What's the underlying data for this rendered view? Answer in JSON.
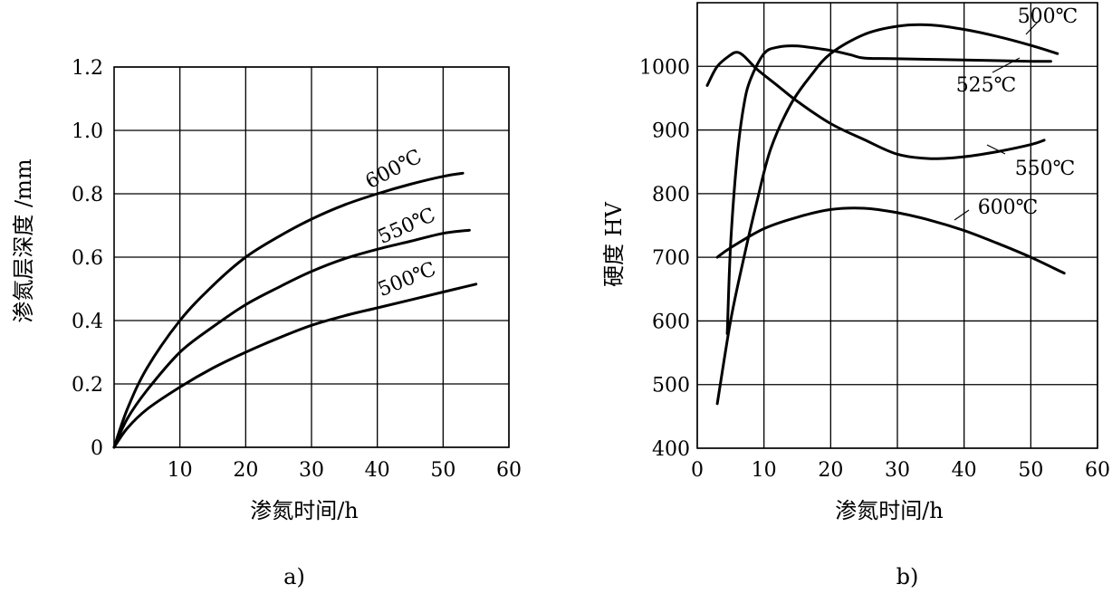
{
  "chart_data": [
    {
      "type": "line",
      "panel_label": "a)",
      "xlabel": "渗氮时间/h",
      "ylabel": "渗氮层深度 /mm",
      "xlim": [
        0,
        60
      ],
      "ylim": [
        0,
        1.2
      ],
      "x_ticks": [
        "10",
        "20",
        "30",
        "40",
        "50",
        "60"
      ],
      "y_ticks": [
        "0",
        "0.2",
        "0.4",
        "0.6",
        "0.8",
        "1.0",
        "1.2"
      ],
      "grid": true,
      "series": [
        {
          "name": "600℃",
          "x": [
            0,
            2,
            5,
            10,
            15,
            20,
            25,
            30,
            35,
            40,
            45,
            50,
            53
          ],
          "y": [
            0,
            0.12,
            0.25,
            0.4,
            0.51,
            0.6,
            0.665,
            0.72,
            0.765,
            0.8,
            0.83,
            0.855,
            0.865
          ]
        },
        {
          "name": "550℃",
          "x": [
            0,
            2,
            5,
            10,
            15,
            20,
            25,
            30,
            35,
            40,
            45,
            50,
            54
          ],
          "y": [
            0,
            0.09,
            0.18,
            0.3,
            0.38,
            0.45,
            0.505,
            0.555,
            0.595,
            0.625,
            0.65,
            0.675,
            0.685
          ]
        },
        {
          "name": "500℃",
          "x": [
            0,
            2,
            5,
            10,
            15,
            20,
            25,
            30,
            35,
            40,
            45,
            50,
            55
          ],
          "y": [
            0,
            0.06,
            0.12,
            0.19,
            0.25,
            0.3,
            0.345,
            0.385,
            0.415,
            0.44,
            0.465,
            0.49,
            0.515
          ]
        }
      ]
    },
    {
      "type": "line",
      "panel_label": "b)",
      "xlabel": "渗氮时间/h",
      "ylabel": "硬度  HV",
      "xlim": [
        0,
        60
      ],
      "ylim": [
        400,
        1100
      ],
      "x_ticks": [
        "0",
        "10",
        "20",
        "30",
        "40",
        "50",
        "60"
      ],
      "y_ticks": [
        "400",
        "500",
        "600",
        "700",
        "800",
        "900",
        "1000"
      ],
      "grid": true,
      "series": [
        {
          "name": "500℃",
          "x": [
            3,
            5,
            7,
            9,
            11,
            14,
            17,
            20,
            25,
            30,
            35,
            40,
            45,
            50,
            54
          ],
          "y": [
            470,
            600,
            700,
            790,
            870,
            940,
            985,
            1020,
            1050,
            1063,
            1065,
            1058,
            1047,
            1033,
            1020
          ]
        },
        {
          "name": "525℃",
          "x": [
            4.5,
            5,
            6,
            7,
            8,
            10,
            12,
            15,
            20,
            23,
            25,
            30,
            40,
            50,
            53
          ],
          "y": [
            580,
            720,
            860,
            940,
            980,
            1020,
            1030,
            1032,
            1025,
            1018,
            1013,
            1012,
            1010,
            1008,
            1008
          ]
        },
        {
          "name": "550℃",
          "x": [
            1.5,
            3,
            5,
            6,
            7,
            9,
            12,
            15,
            20,
            25,
            30,
            35,
            40,
            45,
            50,
            52
          ],
          "y": [
            970,
            1000,
            1018,
            1022,
            1016,
            995,
            970,
            945,
            910,
            885,
            862,
            855,
            858,
            866,
            877,
            884
          ]
        },
        {
          "name": "600℃",
          "x": [
            3,
            5,
            10,
            15,
            20,
            25,
            30,
            35,
            40,
            45,
            50,
            55
          ],
          "y": [
            700,
            715,
            745,
            763,
            775,
            777,
            770,
            758,
            742,
            722,
            700,
            675
          ]
        }
      ]
    }
  ]
}
